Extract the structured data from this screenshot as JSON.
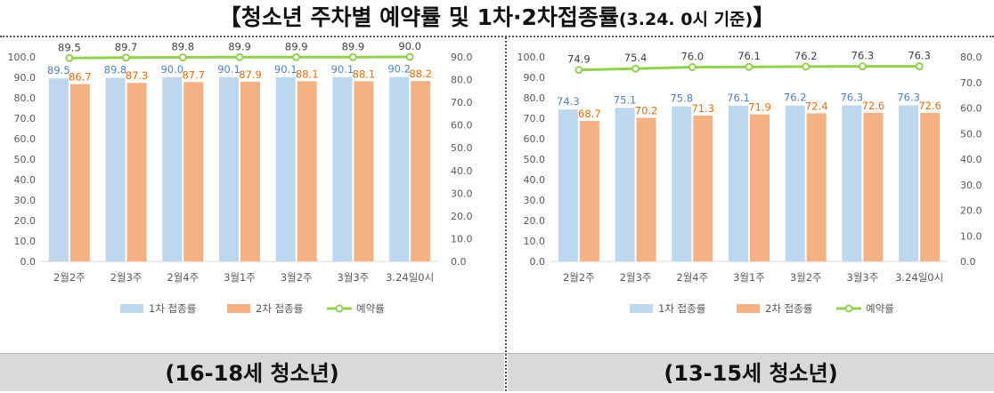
{
  "title_main": "【청소년 주차별 예약률 및 1차·2차접종률",
  "title_sub": "(3.24. 0시 기준)",
  "title_end": "】",
  "colors": {
    "first_dose": "#bdd7ee",
    "second_dose": "#f4b183",
    "reservation": "#92d050",
    "first_label": "#4f81bd",
    "second_label": "#e46c0a"
  },
  "chart_data": [
    {
      "type": "bar",
      "caption": "(16-18세 청소년)",
      "categories": [
        "2월2주",
        "2월3주",
        "2월4주",
        "3월1주",
        "3월2주",
        "3월3주",
        "3.24일0시"
      ],
      "series": [
        {
          "name": "1차 접종률",
          "type": "bar",
          "axis": "left",
          "values": [
            89.5,
            89.8,
            90.0,
            90.1,
            90.1,
            90.1,
            90.2
          ]
        },
        {
          "name": "2차 접종률",
          "type": "bar",
          "axis": "left",
          "values": [
            86.7,
            87.3,
            87.7,
            87.9,
            88.1,
            88.1,
            88.2
          ]
        },
        {
          "name": "예약률",
          "type": "line",
          "axis": "right",
          "values": [
            89.5,
            89.7,
            89.8,
            89.9,
            89.9,
            89.9,
            90.0
          ]
        }
      ],
      "ylim_left": [
        0,
        100
      ],
      "yticks_left": [
        "0.0",
        "10.0",
        "20.0",
        "30.0",
        "40.0",
        "50.0",
        "60.0",
        "70.0",
        "80.0",
        "90.0",
        "100.0"
      ],
      "ylim_right": [
        0,
        90
      ],
      "yticks_right": [
        "0.0",
        "10.0",
        "20.0",
        "30.0",
        "40.0",
        "50.0",
        "60.0",
        "70.0",
        "80.0",
        "90.0"
      ],
      "legend_position": "bottom",
      "grid": false
    },
    {
      "type": "bar",
      "caption": "(13-15세 청소년)",
      "categories": [
        "2월2주",
        "2월3주",
        "2월4주",
        "3월1주",
        "3월2주",
        "3월3주",
        "3.24일0시"
      ],
      "series": [
        {
          "name": "1차 접종률",
          "type": "bar",
          "axis": "left",
          "values": [
            74.3,
            75.1,
            75.8,
            76.1,
            76.2,
            76.3,
            76.3
          ]
        },
        {
          "name": "2차 접종률",
          "type": "bar",
          "axis": "left",
          "values": [
            68.7,
            70.2,
            71.3,
            71.9,
            72.4,
            72.6,
            72.6
          ]
        },
        {
          "name": "예약률",
          "type": "line",
          "axis": "right",
          "values": [
            74.9,
            75.4,
            76.0,
            76.1,
            76.2,
            76.3,
            76.3
          ]
        }
      ],
      "ylim_left": [
        0,
        100
      ],
      "yticks_left": [
        "0.0",
        "10.0",
        "20.0",
        "30.0",
        "40.0",
        "50.0",
        "60.0",
        "70.0",
        "80.0",
        "90.0",
        "100.0"
      ],
      "ylim_right": [
        0,
        80
      ],
      "yticks_right": [
        "0.0",
        "10.0",
        "20.0",
        "30.0",
        "40.0",
        "50.0",
        "60.0",
        "70.0",
        "80.0"
      ],
      "legend_position": "bottom",
      "grid": false
    }
  ]
}
